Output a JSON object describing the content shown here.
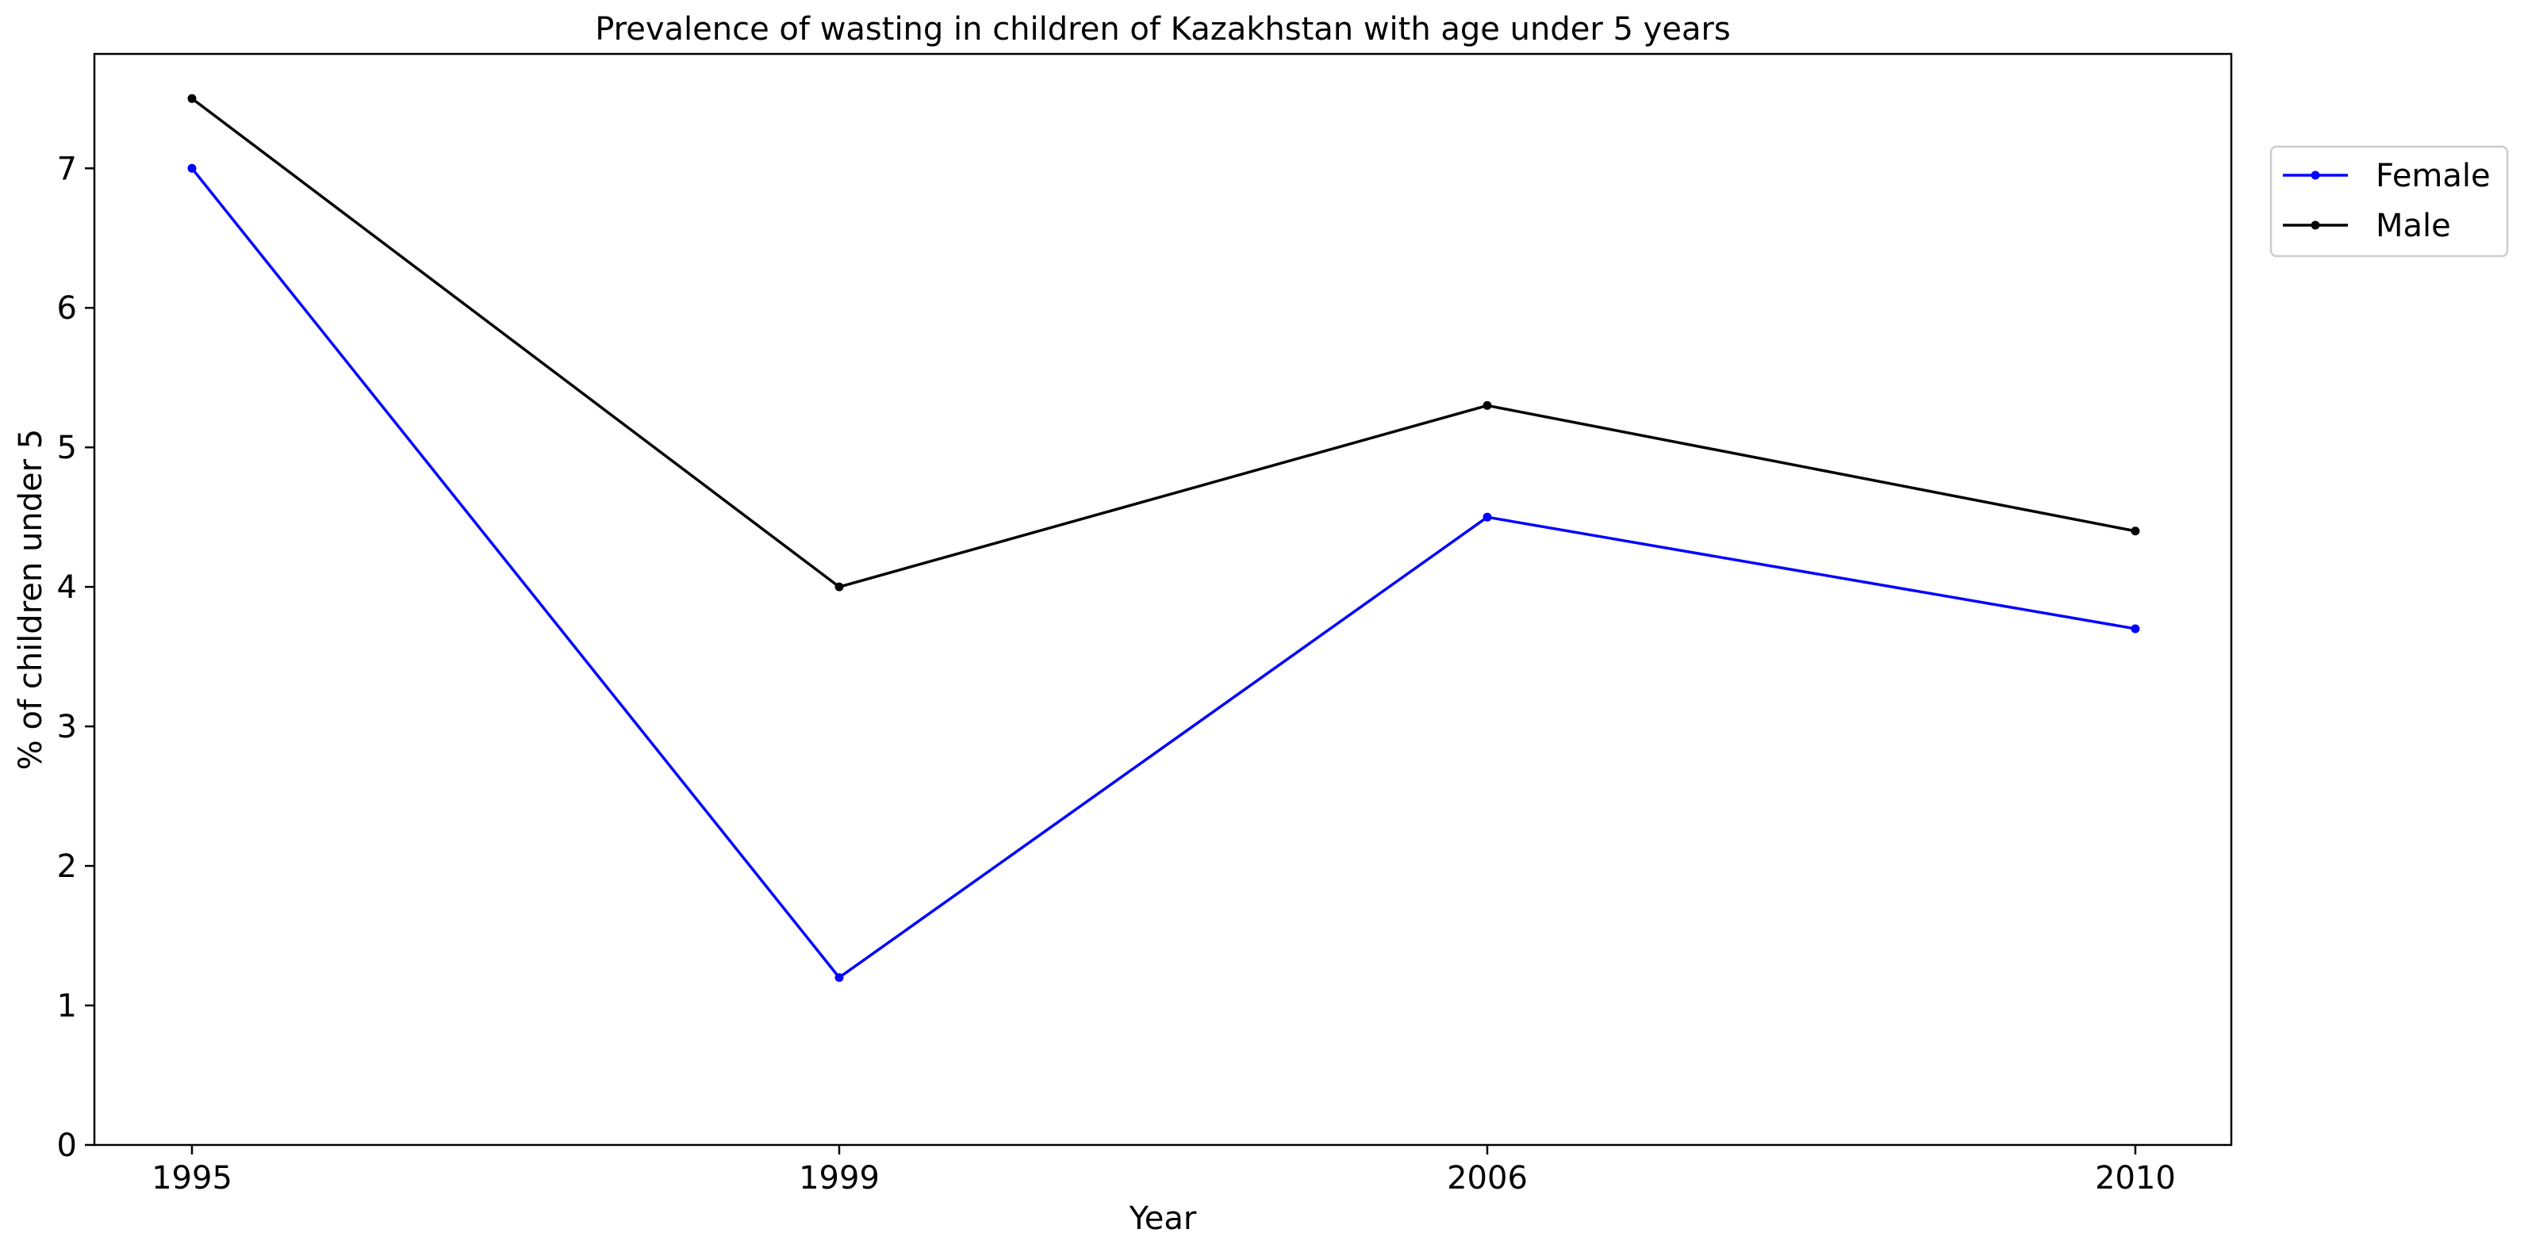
{
  "chart_data": {
    "type": "line",
    "title": "Prevalence of wasting in children of Kazakhstan with age under 5 years",
    "xlabel": "Year",
    "ylabel": "% of children under 5",
    "categories": [
      "1995",
      "1999",
      "2006",
      "2010"
    ],
    "y_ticks": [
      "0",
      "1",
      "2",
      "3",
      "4",
      "5",
      "6",
      "7"
    ],
    "ylim": [
      0,
      7.82
    ],
    "grid": false,
    "legend_position": "upper-right-outside",
    "series": [
      {
        "name": "Female",
        "color": "#0000ff",
        "values": [
          7.0,
          1.2,
          4.5,
          3.7
        ]
      },
      {
        "name": "Male",
        "color": "#000000",
        "values": [
          7.5,
          4.0,
          5.3,
          4.4
        ]
      }
    ]
  }
}
